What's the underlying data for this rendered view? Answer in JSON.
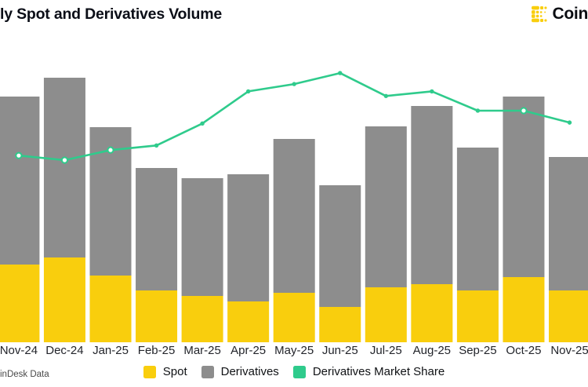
{
  "header": {
    "title": "ly Spot and Derivatives Volume",
    "brand_text": "Coin",
    "brand_color": "#F9CE0D",
    "brand_text_color": "#0B0D12"
  },
  "footer": {
    "source": "inDesk Data"
  },
  "legend": {
    "position": "bottom",
    "items": [
      {
        "label": "Spot",
        "color": "#F9CE0D"
      },
      {
        "label": "Derivatives",
        "color": "#8D8D8D"
      },
      {
        "label": "Derivatives Market Share",
        "color": "#2FCB8C"
      }
    ]
  },
  "chart_data": {
    "type": "bar",
    "subtype": "stacked-bars-with-line-overlay",
    "title": "ly Spot and Derivatives Volume",
    "categories": [
      "Nov-24",
      "Dec-24",
      "Jan-25",
      "Feb-25",
      "Mar-25",
      "Apr-25",
      "May-25",
      "Jun-25",
      "Jul-25",
      "Aug-25",
      "Sep-25",
      "Oct-25",
      "Nov-25"
    ],
    "series": [
      {
        "name": "Spot",
        "type": "bar",
        "color": "#F9CE0D",
        "values": [
          99,
          108,
          85,
          66,
          59,
          52,
          63,
          45,
          70,
          74,
          66,
          83,
          66
        ]
      },
      {
        "name": "Derivatives",
        "type": "bar",
        "color": "#8D8D8D",
        "values": [
          214,
          229,
          189,
          156,
          150,
          162,
          196,
          155,
          205,
          227,
          182,
          230,
          170
        ]
      },
      {
        "name": "Derivatives Market Share",
        "type": "line",
        "color": "#2FCB8C",
        "unit": "%",
        "values": [
          68.5,
          68.0,
          69.1,
          69.6,
          72.0,
          75.5,
          76.3,
          77.5,
          75.0,
          75.5,
          73.4,
          73.4,
          72.1
        ]
      }
    ],
    "stacked": true,
    "grid": false,
    "y_axis_visible": false,
    "value_units": "relative units (no y-axis labels visible in image)",
    "legend_position": "bottom"
  }
}
